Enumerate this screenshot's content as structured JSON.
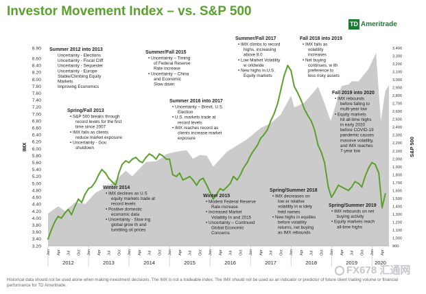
{
  "title": "Investor Movement Index – vs. S&P 500",
  "brand": {
    "mark": "TD",
    "name": "Ameritrade"
  },
  "footer": "Historical data should not be used alone when making investment decisions. The IMX is not a tradeable index. The IMX should not be used as an indicator or predictor of future client trading volume or financial performance for TD Ameritrade.",
  "watermark": "FX678 汇通网",
  "chart_data": {
    "type": "line",
    "title": "Investor Movement Index – vs. S&P 500",
    "ylabel": "IMX",
    "y2label": "S&P 500",
    "ylim": [
      3.2,
      8.9
    ],
    "y2lim": [
      900,
      3400
    ],
    "y_ticks": [
      "3.20",
      "3.40",
      "3.60",
      "3.80",
      "4.00",
      "4.20",
      "4.40",
      "4.60",
      "4.80",
      "5.00",
      "5.20",
      "5.40",
      "5.60",
      "5.80",
      "6.00",
      "6.20",
      "6.40",
      "6.60",
      "6.80",
      "7.00",
      "7.20",
      "7.40",
      "7.60",
      "7.80",
      "8.00",
      "8.20",
      "8.40",
      "8.60",
      "8.90"
    ],
    "y2_ticks": [
      "900",
      "1,000",
      "1,100",
      "1,200",
      "1,300",
      "1,400",
      "1,500",
      "1,600",
      "1,700",
      "1,800",
      "1,900",
      "2,000",
      "2,100",
      "2,200",
      "2,300",
      "2,400",
      "2,500",
      "2,600",
      "2,700",
      "2,800",
      "2,900",
      "3,000",
      "3,100",
      "3,200",
      "3,300",
      "3,400"
    ],
    "years": [
      "2012",
      "2013",
      "2014",
      "2015",
      "2016",
      "2017",
      "2018",
      "2019",
      "2020"
    ],
    "month_labels": [
      "Jan",
      "Apr",
      "Jul",
      "Oct"
    ],
    "x_start": 2012.0,
    "x_end": 2020.42,
    "series": [
      {
        "name": "IMX",
        "color": "#5aa02c",
        "x": [
          2012.0,
          2012.08,
          2012.17,
          2012.25,
          2012.33,
          2012.42,
          2012.5,
          2012.58,
          2012.67,
          2012.75,
          2012.83,
          2012.92,
          2013.0,
          2013.08,
          2013.17,
          2013.25,
          2013.33,
          2013.42,
          2013.5,
          2013.58,
          2013.67,
          2013.75,
          2013.83,
          2013.92,
          2014.0,
          2014.08,
          2014.17,
          2014.25,
          2014.33,
          2014.42,
          2014.5,
          2014.58,
          2014.67,
          2014.75,
          2014.83,
          2014.92,
          2015.0,
          2015.08,
          2015.17,
          2015.25,
          2015.33,
          2015.42,
          2015.5,
          2015.58,
          2015.67,
          2015.75,
          2015.83,
          2015.92,
          2016.0,
          2016.08,
          2016.17,
          2016.25,
          2016.33,
          2016.42,
          2016.5,
          2016.58,
          2016.67,
          2016.75,
          2016.83,
          2016.92,
          2017.0,
          2017.08,
          2017.17,
          2017.25,
          2017.33,
          2017.42,
          2017.5,
          2017.58,
          2017.67,
          2017.75,
          2017.83,
          2017.92,
          2018.0,
          2018.08,
          2018.17,
          2018.25,
          2018.33,
          2018.42,
          2018.5,
          2018.58,
          2018.67,
          2018.75,
          2018.83,
          2018.92,
          2019.0,
          2019.08,
          2019.17,
          2019.25,
          2019.33,
          2019.42,
          2019.5,
          2019.58,
          2019.67,
          2019.75,
          2019.83,
          2019.92,
          2020.0,
          2020.08,
          2020.17,
          2020.25,
          2020.33
        ],
        "values": [
          3.4,
          3.65,
          3.9,
          4.05,
          4.0,
          4.15,
          4.25,
          4.1,
          4.35,
          4.55,
          4.45,
          4.7,
          4.85,
          4.9,
          5.05,
          5.25,
          5.4,
          5.3,
          5.15,
          5.05,
          4.95,
          5.3,
          5.55,
          5.65,
          5.6,
          5.7,
          5.75,
          5.65,
          5.6,
          5.75,
          5.85,
          5.8,
          5.7,
          5.85,
          5.8,
          5.7,
          5.7,
          5.25,
          5.2,
          5.3,
          5.1,
          5.15,
          5.2,
          5.1,
          4.95,
          5.1,
          5.15,
          4.95,
          4.75,
          4.55,
          4.7,
          4.85,
          4.8,
          4.9,
          5.0,
          5.2,
          5.1,
          5.25,
          5.45,
          5.6,
          5.8,
          5.95,
          6.1,
          6.3,
          6.4,
          6.55,
          6.8,
          7.0,
          7.3,
          7.7,
          8.1,
          8.4,
          8.25,
          7.8,
          7.6,
          7.4,
          7.15,
          6.95,
          6.8,
          6.55,
          6.1,
          5.9,
          5.6,
          4.9,
          4.6,
          4.75,
          4.95,
          4.9,
          4.85,
          4.8,
          4.9,
          5.05,
          5.0,
          4.9,
          5.2,
          5.45,
          5.6,
          5.55,
          5.3,
          4.3,
          4.7
        ]
      },
      {
        "name": "S&P 500",
        "color": "#cbcbcb",
        "x": [
          2012.0,
          2012.25,
          2012.42,
          2012.67,
          2012.92,
          2013.17,
          2013.42,
          2013.58,
          2013.92,
          2014.08,
          2014.42,
          2014.67,
          2014.83,
          2014.92,
          2015.17,
          2015.42,
          2015.58,
          2015.75,
          2015.92,
          2016.08,
          2016.42,
          2016.67,
          2016.92,
          2017.25,
          2017.5,
          2017.75,
          2018.0,
          2018.08,
          2018.33,
          2018.67,
          2018.83,
          2018.98,
          2019.25,
          2019.42,
          2019.5,
          2019.67,
          2019.92,
          2020.1,
          2020.22,
          2020.33,
          2020.42
        ],
        "values": [
          1310,
          1400,
          1340,
          1450,
          1430,
          1570,
          1640,
          1690,
          1850,
          1780,
          1960,
          1970,
          2020,
          2060,
          2090,
          2110,
          2000,
          2050,
          2040,
          1900,
          2090,
          2170,
          2250,
          2390,
          2450,
          2560,
          2800,
          2650,
          2710,
          2910,
          2700,
          2480,
          2920,
          2940,
          2980,
          2980,
          3140,
          3340,
          2480,
          2860,
          2930
        ]
      }
    ]
  },
  "annotations": [
    {
      "title": "Summer 2012 into 2013",
      "lines": [
        "Uncertainty - Elections",
        "Uncertainty - Fiscal Cliff",
        "Uncertainty - Sequester",
        "Uncertainty - Europe",
        "Stable/Climbing Equity",
        "Markets",
        "Improving Economics"
      ]
    },
    {
      "title": "Spring/Fall 2013",
      "lines": [
        "• S&P 500 breaks through",
        "record levels for the first",
        "time since 2007",
        "• IMX falls as clients",
        "reduce market exposure.",
        "• Uncertainty - Gov.",
        "shutdown"
      ]
    },
    {
      "title": "Winter 2014",
      "lines": [
        "• IMX declines as U.S",
        "equity markets trade at",
        "record levels",
        "• Positive domestic",
        "economic data",
        "• Uncertainty - Slow ing",
        "global grow th and",
        "tumbling oil prices"
      ]
    },
    {
      "title": "Summer/Fall 2015",
      "lines": [
        "• Uncertainty – Timing",
        "of Federal Reserve",
        "Rate increase",
        "• Uncertainty – China",
        "and Economic",
        "Slow down"
      ]
    },
    {
      "title": "Summer 2016 into 2017",
      "lines": [
        "• Uncertainty – Brexit, U.S.",
        "Election",
        "• U.S. markets trade at",
        "record levels",
        "• IMX reaches record as",
        "clients increase market",
        "exposure"
      ]
    },
    {
      "title": "Winter 2015",
      "lines": [
        "• Modest Federal Reserve",
        "Rate increase",
        "• Increased Market",
        "Volatility In and 2015",
        "• Uncertainty – Continued",
        "Global Economic",
        "Concerns"
      ]
    },
    {
      "title": "Summer/Fall 2017",
      "lines": [
        "• IMX climbs to record",
        "highs, increasing",
        "above 8.0",
        "• Low Market Volatility",
        "w orldwide",
        "• New highs in U.S.",
        "Equity markets"
      ]
    },
    {
      "title": "Fall 2018 into 2019",
      "lines": [
        "• IMX falls as",
        "volatility",
        "increases",
        "• Net buying",
        "continues, w ith",
        "preference to",
        "less risky assets"
      ]
    },
    {
      "title": "Fall 2019 into 2020",
      "lines": [
        "• IMX rebounds",
        "before falling to",
        "multi-year low",
        "• Equity markets",
        "hit all-time highs",
        "in early 2020",
        "before COVID-19",
        "pandemic causes",
        "massive volatility,",
        "and IMX reaches",
        "7-year low"
      ]
    },
    {
      "title": "Spring/Summer 2018",
      "lines": [
        "• IMX decreases on",
        "low er relative",
        "volatility in w idely",
        "held names",
        "• New highs in equities",
        "before volatility",
        "returns, net buying",
        "as IMX rebounds"
      ]
    },
    {
      "title": "Spring/Summer 2019",
      "lines": [
        "• IMX rebounds on net",
        "buying activity",
        "• Equity markets reach",
        "all-time highs"
      ]
    }
  ]
}
